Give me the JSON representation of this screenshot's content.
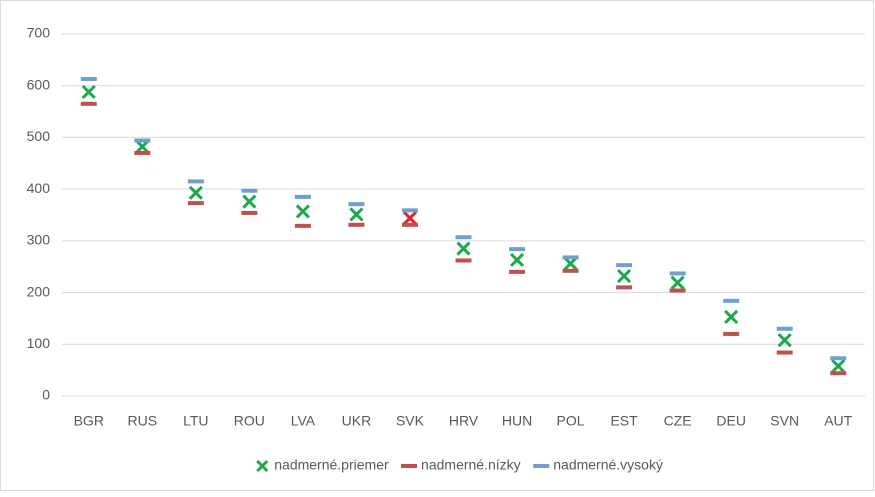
{
  "chart_data": {
    "type": "scatter",
    "categories": [
      "BGR",
      "RUS",
      "LTU",
      "ROU",
      "LVA",
      "UKR",
      "SVK",
      "HRV",
      "HUN",
      "POL",
      "EST",
      "CZE",
      "DEU",
      "SVN",
      "AUT"
    ],
    "series": [
      {
        "name": "nadmerné.priemer",
        "color": "#1aaa4a",
        "marker": "x",
        "point_colors": {
          "6": "#e8202a"
        },
        "values": [
          588,
          482,
          393,
          376,
          357,
          351,
          344,
          285,
          263,
          256,
          232,
          219,
          153,
          108,
          58
        ]
      },
      {
        "name": "nadmerné.nízky",
        "color": "#c0504d",
        "marker": "dash",
        "values": [
          565,
          470,
          373,
          354,
          329,
          331,
          331,
          262,
          240,
          242,
          210,
          204,
          120,
          84,
          44
        ]
      },
      {
        "name": "nadmerné.vysoký",
        "color": "#6f9fd0",
        "marker": "dash",
        "values": [
          613,
          494,
          415,
          397,
          385,
          371,
          359,
          307,
          284,
          268,
          253,
          237,
          184,
          130,
          73
        ]
      }
    ],
    "ylim": [
      0,
      700
    ],
    "yticks": [
      0,
      100,
      200,
      300,
      400,
      500,
      600,
      700
    ],
    "grid": true,
    "legend": "bottom"
  }
}
